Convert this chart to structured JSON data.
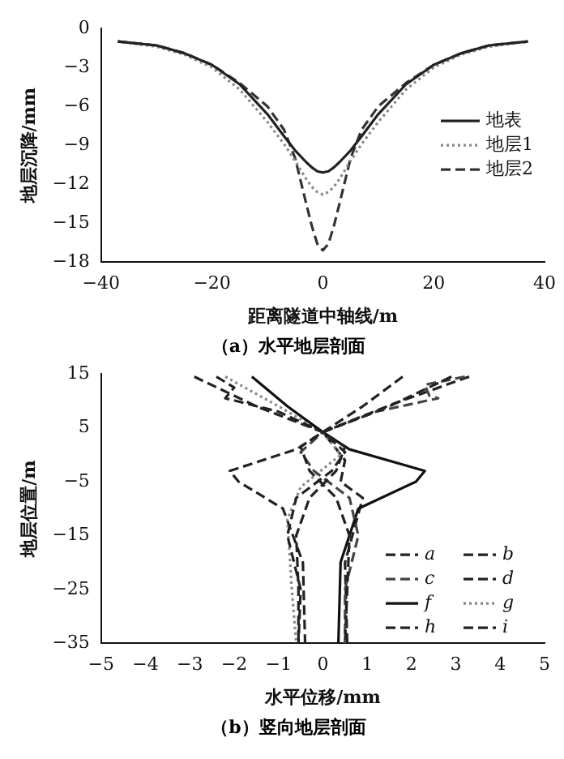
{
  "chart_data": [
    {
      "type": "line",
      "xlabel": "距离隧道中轴线/m",
      "ylabel": "地层沉降/mm",
      "annotations": [
        "（a）水平地层剖面"
      ],
      "x": [
        -37,
        -30,
        -25,
        -20,
        -15,
        -10,
        -7,
        -5,
        -3,
        -2,
        -1,
        0,
        1,
        2,
        3,
        5,
        7,
        10,
        15,
        20,
        25,
        30,
        37
      ],
      "xlim": [
        -40,
        40
      ],
      "xticks": [
        -40,
        -20,
        0,
        20,
        40
      ],
      "ylim": [
        -18,
        0
      ],
      "yticks": [
        0,
        -3,
        -6,
        -9,
        -12,
        -15,
        -18
      ],
      "legend": "right",
      "series": [
        {
          "name": "地表",
          "color": "#222222",
          "line_style": "solid",
          "values": [
            -1,
            -1.3,
            -1.9,
            -2.8,
            -4.3,
            -6.6,
            -8.3,
            -9.4,
            -10.3,
            -10.7,
            -11.0,
            -11.1,
            -11.0,
            -10.7,
            -10.3,
            -9.4,
            -8.3,
            -6.6,
            -4.3,
            -2.8,
            -1.9,
            -1.3,
            -1
          ]
        },
        {
          "name": "地层1",
          "color": "#888888",
          "line_style": "dotted",
          "values": [
            -1,
            -1.4,
            -2.0,
            -3.0,
            -4.7,
            -7.2,
            -8.9,
            -10.2,
            -11.6,
            -12.2,
            -12.6,
            -12.8,
            -12.6,
            -12.2,
            -11.6,
            -10.2,
            -8.9,
            -7.2,
            -4.7,
            -3.0,
            -2.0,
            -1.4,
            -1
          ]
        },
        {
          "name": "地层2",
          "color": "#333333",
          "line_style": "dashed",
          "values": [
            -1,
            -1.3,
            -1.9,
            -2.8,
            -4.2,
            -6.0,
            -7.8,
            -10.0,
            -13.5,
            -15.2,
            -16.6,
            -17.1,
            -16.6,
            -15.2,
            -13.5,
            -10.0,
            -7.8,
            -6.0,
            -4.2,
            -2.8,
            -1.9,
            -1.3,
            -1
          ]
        }
      ]
    },
    {
      "type": "line",
      "xlabel": "水平位移/mm",
      "ylabel": "地层位置/m",
      "annotations": [
        "（b）竖向地层剖面"
      ],
      "xlim": [
        -5,
        5
      ],
      "xticks": [
        -5,
        -4,
        -3,
        -2,
        -1,
        0,
        1,
        2,
        3,
        4,
        5
      ],
      "ylim": [
        -35,
        15
      ],
      "yticks": [
        15,
        5,
        -5,
        -15,
        -25,
        -35
      ],
      "legend": "bottom right",
      "series": [
        {
          "name": "a",
          "color": "#222222",
          "line_style": "dashed",
          "x": [
            -2.9,
            -1.5,
            0,
            -0.5,
            -0.3,
            0.3,
            0.6,
            0.55,
            0.5
          ],
          "values": [
            14.5,
            9,
            4.2,
            1.5,
            -3,
            -8,
            -15,
            -25,
            -35
          ]
        },
        {
          "name": "b",
          "color": "#222222",
          "line_style": "dashed",
          "x": [
            2.9,
            1.5,
            0,
            0.5,
            0.3,
            -0.3,
            -0.6,
            -0.55,
            -0.55
          ],
          "values": [
            14.5,
            9,
            4.2,
            1.5,
            -3,
            -8,
            -15,
            -25,
            -35
          ]
        },
        {
          "name": "c",
          "color": "#444444",
          "line_style": "dashed",
          "x": [
            3.2,
            2.3,
            2.4,
            2.6,
            1.2,
            0,
            -0.5,
            -0.2,
            0.6,
            0.8,
            0.5,
            0.5
          ],
          "values": [
            14.5,
            13,
            11,
            10.5,
            8,
            4.2,
            0.5,
            -3,
            -8,
            -15,
            -25,
            -35
          ]
        },
        {
          "name": "d",
          "color": "#222222",
          "line_style": "dashed",
          "x": [
            -2.4,
            -2.0,
            -2.2,
            -1.0,
            0,
            0.5,
            0.2,
            -0.6,
            -0.8,
            -0.5,
            -0.55
          ],
          "values": [
            14.5,
            12.5,
            10.5,
            8,
            4.2,
            0.5,
            -3,
            -8,
            -15,
            -25,
            -35
          ]
        },
        {
          "name": "f",
          "color": "#111111",
          "line_style": "solid",
          "x": [
            -1.6,
            -0.8,
            0,
            0.6,
            2.3,
            2.1,
            0.8,
            0.4,
            0.35
          ],
          "values": [
            14.5,
            9,
            4.2,
            1,
            -3,
            -5,
            -10,
            -20,
            -35
          ]
        },
        {
          "name": "g",
          "color": "#888888",
          "line_style": "dotted",
          "x": [
            -2.2,
            -1,
            0,
            0.4,
            -0.5,
            -0.8,
            -0.7,
            -0.6
          ],
          "values": [
            14.5,
            9,
            4.2,
            0,
            -6,
            -12,
            -25,
            -35
          ]
        },
        {
          "name": "h",
          "color": "#222222",
          "line_style": "dashed",
          "x": [
            1.8,
            0.9,
            0,
            -0.6,
            -2.1,
            -1.9,
            -0.9,
            -0.45,
            -0.4
          ],
          "values": [
            14.5,
            9,
            4.2,
            1,
            -3,
            -5,
            -10,
            -20,
            -35
          ]
        },
        {
          "name": "i",
          "color": "#222222",
          "line_style": "dashed",
          "x": [
            3.3,
            1.6,
            0,
            0.5,
            0.4,
            0.9,
            0.5,
            0.55
          ],
          "values": [
            14.5,
            9.5,
            4.2,
            -1,
            -5,
            -8,
            -20,
            -35
          ]
        }
      ]
    }
  ]
}
